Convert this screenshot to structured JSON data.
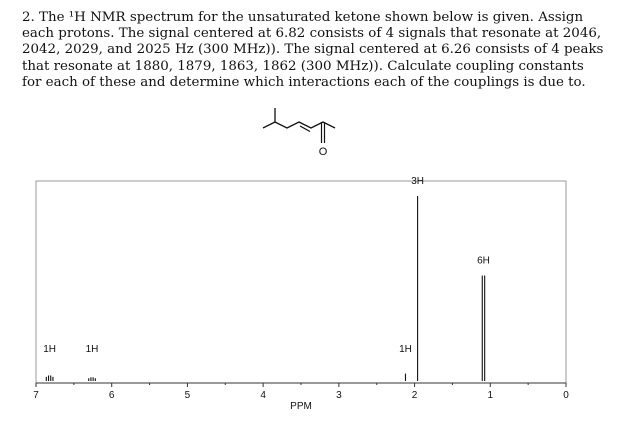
{
  "question": {
    "lines": [
      "2. The ¹H NMR spectrum for the unsaturated ketone shown below is given. Assign",
      "each protons. The signal centered at 6.82 consists of 4 signals that resonate at 2046,",
      "2042, 2029, and 2025 Hz (300 MHz)). The signal centered at 6.26 consists of 4 peaks",
      "that resonate at 1880, 1879, 1863, 1862 (300 MHz)). Calculate coupling constants",
      "for each of these and determine which interactions each of the couplings is due to."
    ]
  },
  "molecule": {
    "carbonyl_atom": "O"
  },
  "chart_data": {
    "type": "nmr-spectrum",
    "xlabel": "PPM",
    "xlim": [
      7,
      0
    ],
    "xticks": [
      "7",
      "6",
      "5",
      "4",
      "3",
      "2",
      "1",
      "0"
    ],
    "peaks": [
      {
        "shift": 6.82,
        "height": 0.03,
        "integration": "1H",
        "lines": 4
      },
      {
        "shift": 6.26,
        "height": 0.02,
        "integration": "1H",
        "lines": 4
      },
      {
        "shift": 2.12,
        "height": 0.04,
        "integration": "1H",
        "lines": 1
      },
      {
        "shift": 1.96,
        "height": 1.0,
        "integration": "3H",
        "lines": 1
      },
      {
        "shift": 1.09,
        "height": 0.57,
        "integration": "6H",
        "lines": 2
      }
    ],
    "grid": false
  }
}
